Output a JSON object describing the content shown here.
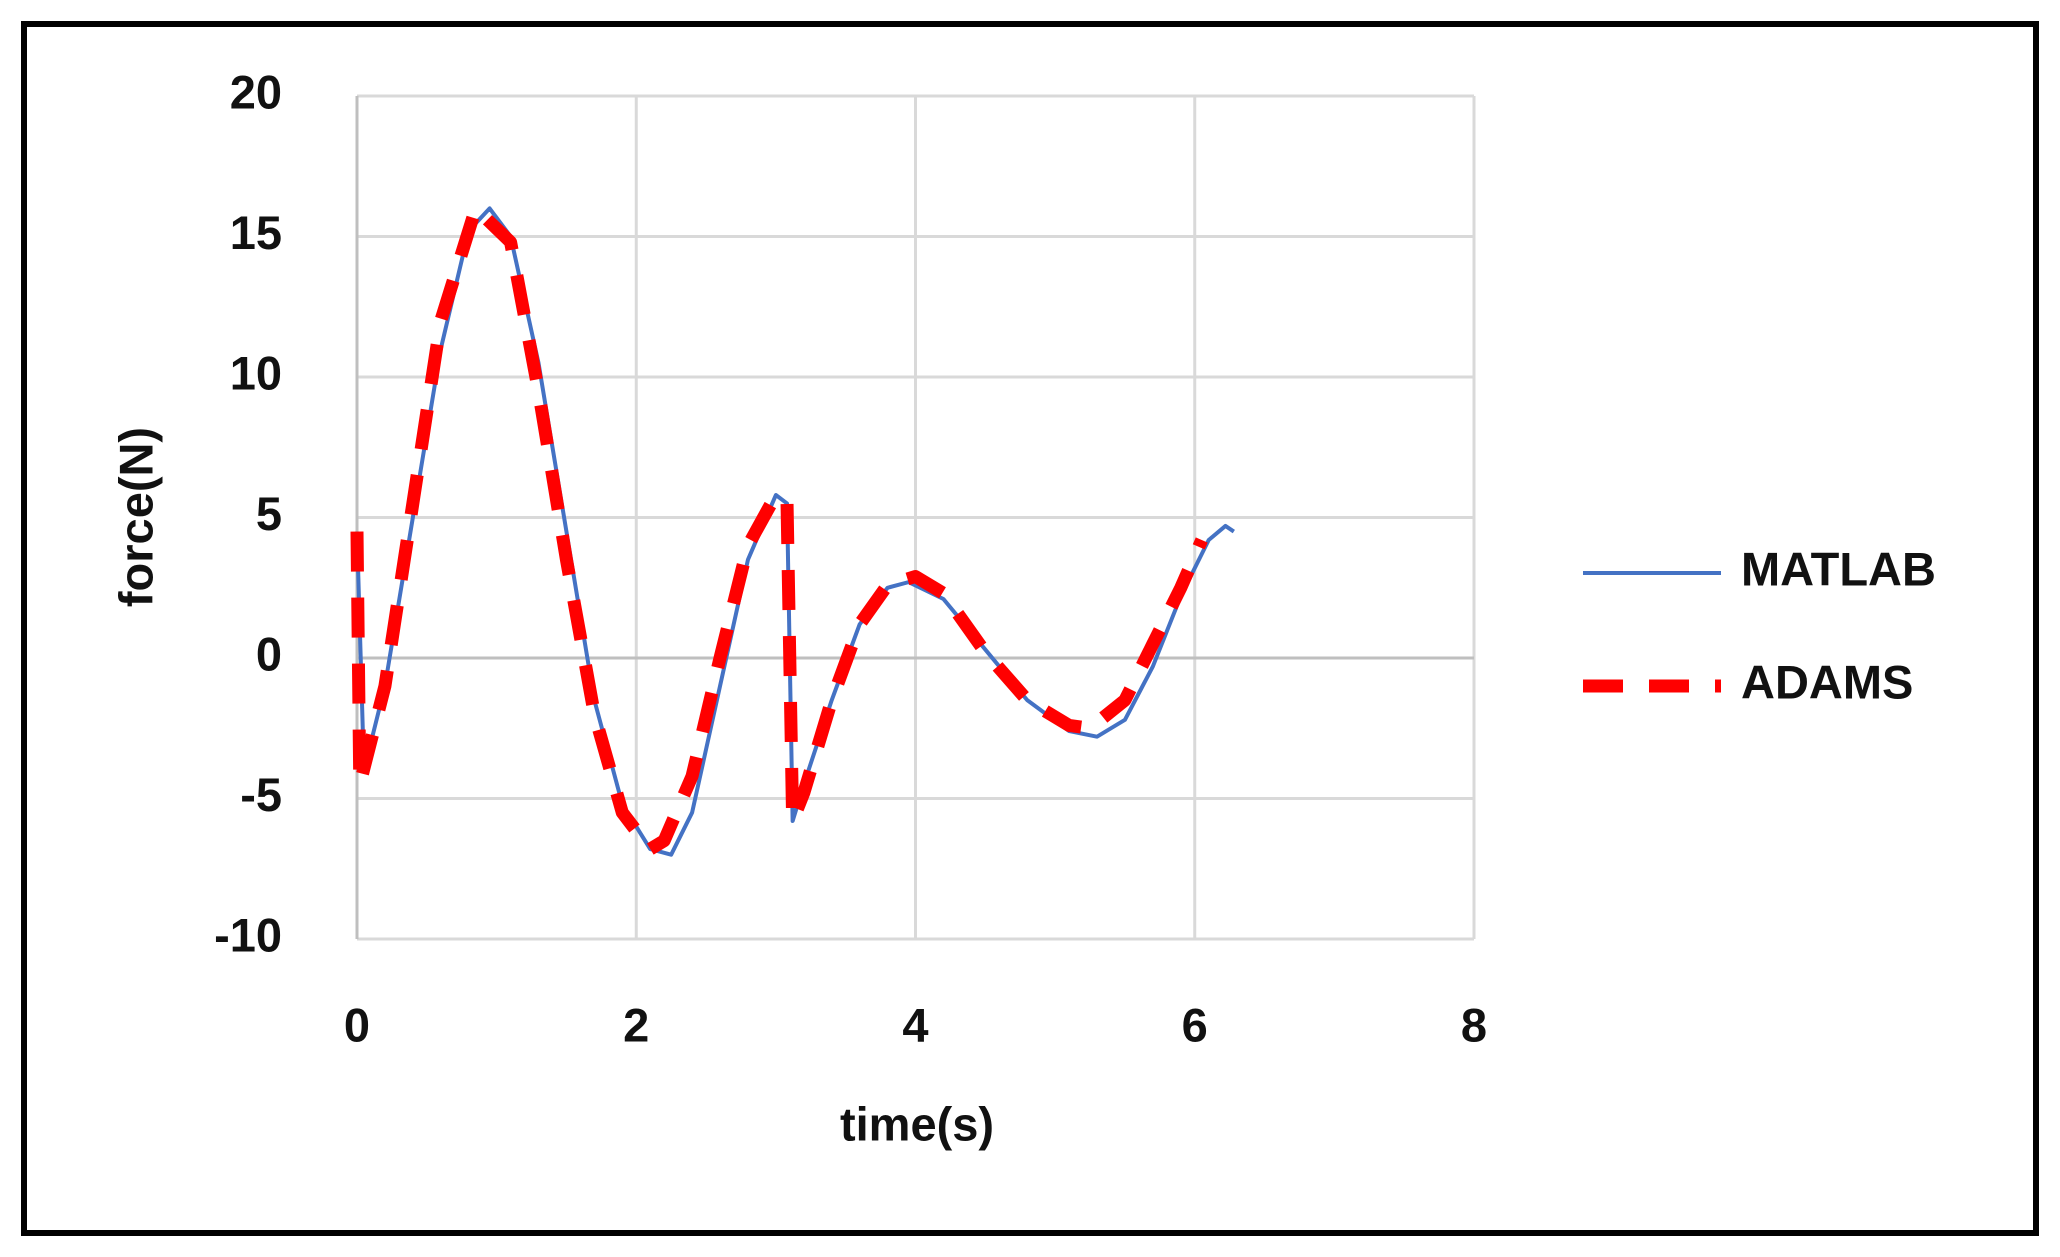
{
  "chart_data": {
    "type": "line",
    "xlabel": "time(s)",
    "ylabel": "force(N)",
    "xlim": [
      0,
      8
    ],
    "xticks": [
      0,
      2,
      4,
      6,
      8
    ],
    "ylim": [
      -10,
      20
    ],
    "yticks": [
      -10,
      -5,
      0,
      5,
      10,
      15,
      20
    ],
    "grid": true,
    "legend": "right",
    "series": [
      {
        "name": "MATLAB",
        "color": "#4472c4",
        "style": "solid",
        "x": [
          0,
          0.05,
          0.2,
          0.4,
          0.6,
          0.8,
          0.95,
          1.1,
          1.3,
          1.5,
          1.7,
          1.9,
          2.1,
          2.25,
          2.4,
          2.6,
          2.8,
          3.0,
          3.08,
          3.12,
          3.2,
          3.4,
          3.6,
          3.8,
          3.95,
          4.2,
          4.5,
          4.8,
          5.1,
          5.3,
          5.5,
          5.7,
          5.9,
          6.1,
          6.22,
          6.28
        ],
        "values": [
          4.5,
          -4,
          -1,
          5,
          11,
          15.2,
          16,
          15,
          10.5,
          4.5,
          -1.5,
          -5.2,
          -6.8,
          -7,
          -5.5,
          -1,
          3.5,
          5.8,
          5.5,
          -5.8,
          -4.5,
          -1.5,
          1.2,
          2.5,
          2.7,
          2.1,
          0.3,
          -1.5,
          -2.6,
          -2.8,
          -2.2,
          -0.3,
          2.2,
          4.2,
          4.7,
          4.5
        ]
      },
      {
        "name": "ADAMS",
        "color": "#ff0000",
        "style": "dashed",
        "x": [
          0,
          0.02,
          0.2,
          0.4,
          0.6,
          0.85,
          1.1,
          1.3,
          1.5,
          1.7,
          1.9,
          2.1,
          2.2,
          2.4,
          2.6,
          2.8,
          3.0,
          3.08,
          3.12,
          3.2,
          3.4,
          3.6,
          3.8,
          4.0,
          4.2,
          4.5,
          4.8,
          5.1,
          5.25,
          5.5,
          5.7,
          5.9,
          6.05
        ],
        "values": [
          4.5,
          -4.5,
          -1,
          5.5,
          12,
          16,
          14.8,
          9.5,
          3.5,
          -2,
          -5.5,
          -6.8,
          -6.5,
          -4.2,
          0,
          4,
          5.8,
          5.5,
          -5.8,
          -4.8,
          -1.5,
          1.2,
          2.6,
          2.9,
          2.3,
          0.2,
          -1.5,
          -2.4,
          -2.5,
          -1.5,
          0.5,
          2.5,
          4.2
        ]
      }
    ]
  }
}
